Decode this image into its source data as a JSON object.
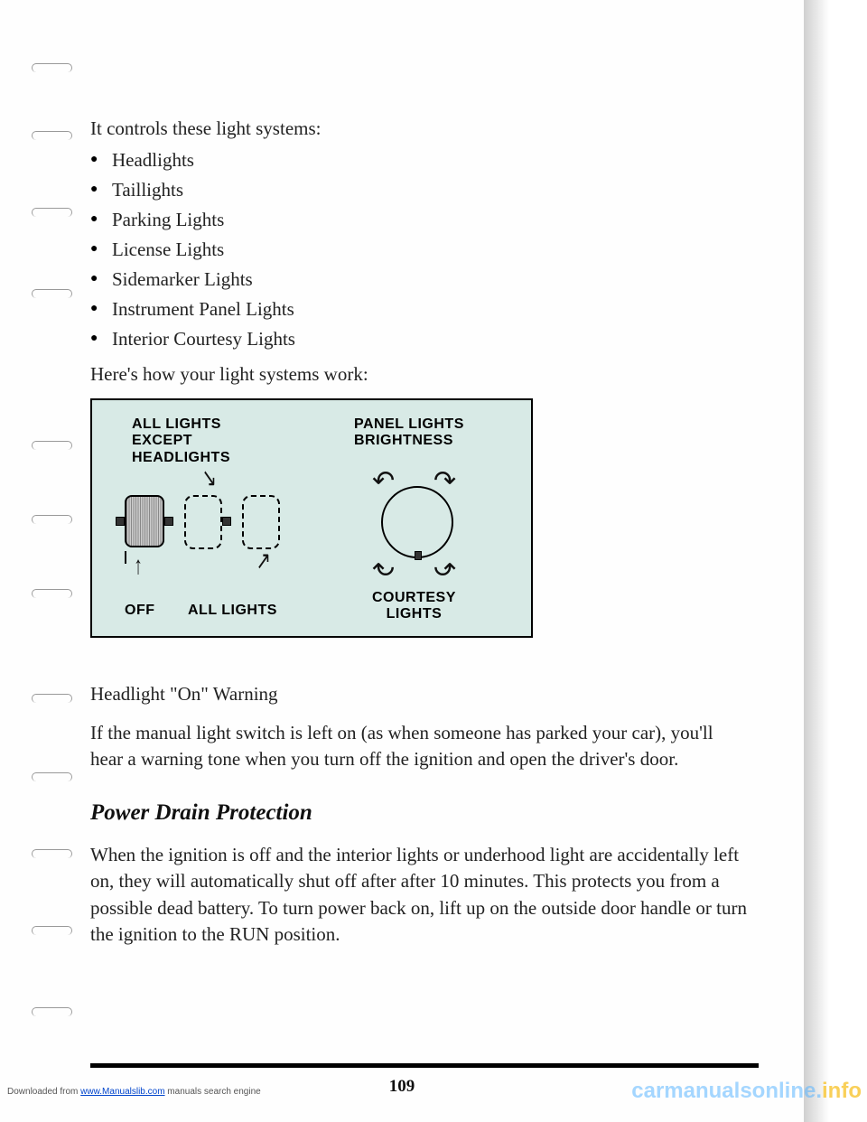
{
  "intro": "It controls these light systems:",
  "bullets": [
    "Headlights",
    "Taillights",
    "Parking Lights",
    "License Lights",
    "Sidemarker Lights",
    "Instrument Panel Lights",
    "Interior Courtesy Lights"
  ],
  "how_works": "Here's how your light systems work:",
  "diagram": {
    "label_left_top": "ALL LIGHTS\nEXCEPT\nHEADLIGHTS",
    "label_right_top": "PANEL LIGHTS\nBRIGHTNESS",
    "label_off": "OFF",
    "label_all": "ALL LIGHTS",
    "label_courtesy": "COURTESY\nLIGHTS"
  },
  "sub_heading": "Headlight \"On\" Warning",
  "sub_para": "If the manual light switch is left on (as when someone has parked your car), you'll hear a warning tone when you turn off the ignition and open the driver's door.",
  "section_title": "Power Drain Protection",
  "section_para": "When the ignition is off and the interior lights or underhood light are accidentally left on, they will automatically shut off after after 10 minutes. This protects you from a possible dead battery. To turn power back on, lift up on the outside door handle or turn the ignition to the RUN position.",
  "page_number": "109",
  "footer_prefix": "Downloaded from ",
  "footer_link": "www.Manualslib.com",
  "footer_suffix": " manuals search engine",
  "watermark_main": "carmanualsonline.",
  "watermark_info": "info",
  "binder_positions": [
    70,
    145,
    230,
    320,
    488,
    570,
    652,
    768,
    855,
    940,
    1025,
    1115
  ]
}
